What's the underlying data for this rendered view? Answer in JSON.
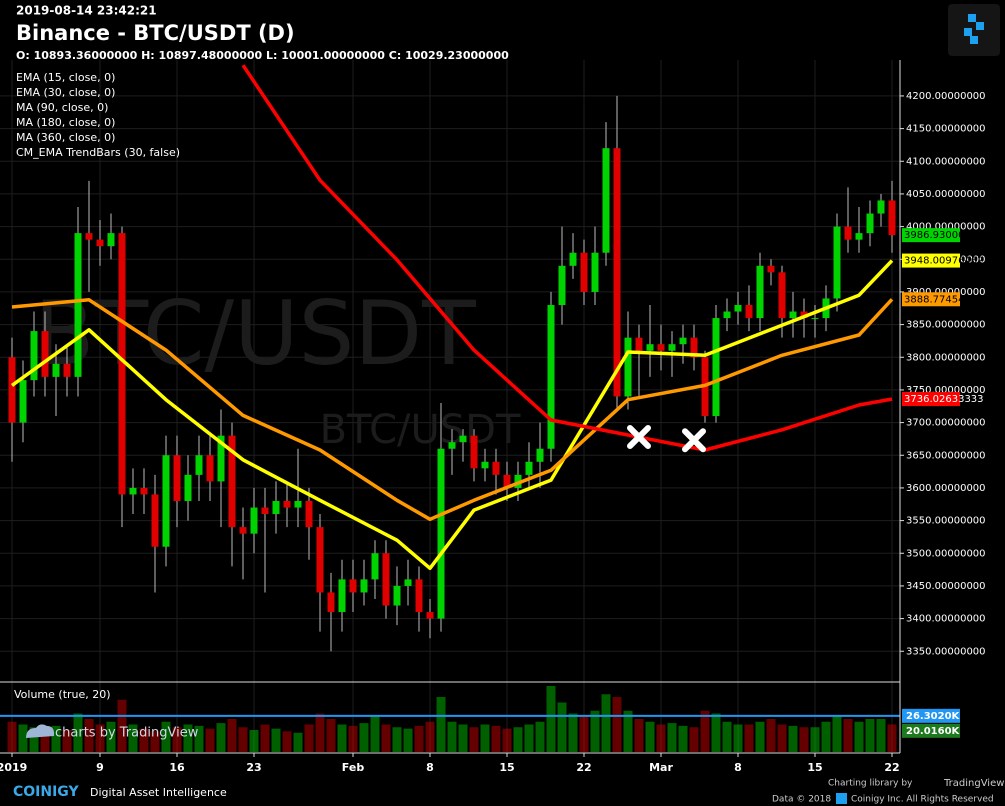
{
  "chart_data": {
    "type": "candlestick",
    "timestamp": "2019-08-14 23:42:21",
    "title": "Binance - BTC/USDT (D)",
    "ohlc_text": "O: 10893.36000000 H: 10897.48000000 L: 10001.00000000 C: 10029.23000000",
    "other_indicators": [
      "MA (180, close, 0)",
      "MA (360, close, 0)",
      "CM_EMA TrendBars (30, false)"
    ],
    "watermark": "BTC/USDT",
    "candles": {
      "x": [
        "2019-01-01",
        "2019-01-02",
        "2019-01-03",
        "2019-01-04",
        "2019-01-05",
        "2019-01-06",
        "2019-01-07",
        "2019-01-08",
        "2019-01-09",
        "2019-01-10",
        "2019-01-11",
        "2019-01-12",
        "2019-01-13",
        "2019-01-14",
        "2019-01-15",
        "2019-01-16",
        "2019-01-17",
        "2019-01-18",
        "2019-01-19",
        "2019-01-20",
        "2019-01-21",
        "2019-01-22",
        "2019-01-23",
        "2019-01-24",
        "2019-01-25",
        "2019-01-26",
        "2019-01-27",
        "2019-01-28",
        "2019-01-29",
        "2019-01-30",
        "2019-01-31",
        "2019-02-01",
        "2019-02-02",
        "2019-02-03",
        "2019-02-04",
        "2019-02-05",
        "2019-02-06",
        "2019-02-07",
        "2019-02-08",
        "2019-02-09",
        "2019-02-10",
        "2019-02-11",
        "2019-02-12",
        "2019-02-13",
        "2019-02-14",
        "2019-02-15",
        "2019-02-16",
        "2019-02-17",
        "2019-02-18",
        "2019-02-19",
        "2019-02-20",
        "2019-02-21",
        "2019-02-22",
        "2019-02-23",
        "2019-02-24",
        "2019-02-25",
        "2019-02-26",
        "2019-02-27",
        "2019-02-28",
        "2019-03-01",
        "2019-03-02",
        "2019-03-03",
        "2019-03-04",
        "2019-03-05",
        "2019-03-06",
        "2019-03-07",
        "2019-03-08",
        "2019-03-09",
        "2019-03-10",
        "2019-03-11",
        "2019-03-12",
        "2019-03-13",
        "2019-03-14",
        "2019-03-15",
        "2019-03-16",
        "2019-03-17",
        "2019-03-18",
        "2019-03-19",
        "2019-03-20",
        "2019-03-21",
        "2019-03-22"
      ],
      "open": [
        3800,
        3700,
        3765,
        3840,
        3770,
        3790,
        3770,
        3990,
        3980,
        3970,
        3990,
        3590,
        3600,
        3590,
        3510,
        3650,
        3580,
        3620,
        3650,
        3610,
        3680,
        3540,
        3530,
        3570,
        3560,
        3580,
        3570,
        3580,
        3540,
        3440,
        3410,
        3460,
        3440,
        3460,
        3500,
        3420,
        3450,
        3460,
        3410,
        3400,
        3660,
        3670,
        3680,
        3630,
        3640,
        3620,
        3600,
        3620,
        3640,
        3660,
        3880,
        3940,
        3960,
        3900,
        3960,
        4120,
        3740,
        3830,
        3810,
        3820,
        3810,
        3820,
        3830,
        3800,
        3710,
        3860,
        3870,
        3880,
        3860,
        3940,
        3930,
        3860,
        3870,
        3860,
        3860,
        3890,
        4000,
        3980,
        3990,
        4020,
        4040
      ],
      "high": [
        3830,
        3795,
        3870,
        3870,
        3820,
        3820,
        4030,
        4070,
        4010,
        4020,
        4000,
        3630,
        3630,
        3620,
        3680,
        3680,
        3650,
        3680,
        3680,
        3720,
        3700,
        3570,
        3600,
        3600,
        3610,
        3610,
        3660,
        3600,
        3560,
        3470,
        3490,
        3490,
        3490,
        3520,
        3520,
        3480,
        3490,
        3480,
        3430,
        3730,
        3690,
        3690,
        3690,
        3660,
        3660,
        3640,
        3640,
        3670,
        3700,
        3900,
        4000,
        3990,
        3980,
        4000,
        4160,
        4200,
        3870,
        3850,
        3880,
        3850,
        3840,
        3850,
        3850,
        3810,
        3880,
        3890,
        3900,
        3910,
        3960,
        3950,
        3940,
        3900,
        3890,
        3880,
        3910,
        4020,
        4060,
        4030,
        4040,
        4050,
        4070
      ],
      "low": [
        3640,
        3670,
        3740,
        3740,
        3710,
        3740,
        3740,
        3900,
        3940,
        3950,
        3540,
        3560,
        3560,
        3440,
        3480,
        3540,
        3550,
        3580,
        3580,
        3540,
        3480,
        3460,
        3500,
        3440,
        3530,
        3540,
        3540,
        3490,
        3380,
        3350,
        3380,
        3410,
        3420,
        3430,
        3400,
        3390,
        3420,
        3380,
        3370,
        3380,
        3620,
        3640,
        3610,
        3610,
        3590,
        3580,
        3580,
        3600,
        3600,
        3640,
        3850,
        3920,
        3880,
        3880,
        3940,
        3720,
        3720,
        3740,
        3770,
        3780,
        3770,
        3790,
        3780,
        3700,
        3700,
        3840,
        3850,
        3840,
        3840,
        3910,
        3830,
        3830,
        3830,
        3830,
        3840,
        3870,
        3960,
        3960,
        3970,
        4000,
        3960
      ],
      "close": [
        3700,
        3765,
        3840,
        3770,
        3790,
        3770,
        3990,
        3980,
        3970,
        3990,
        3590,
        3600,
        3590,
        3510,
        3650,
        3580,
        3620,
        3650,
        3610,
        3680,
        3540,
        3530,
        3570,
        3560,
        3580,
        3570,
        3580,
        3540,
        3440,
        3410,
        3460,
        3440,
        3460,
        3500,
        3420,
        3450,
        3460,
        3410,
        3400,
        3660,
        3670,
        3680,
        3630,
        3640,
        3620,
        3600,
        3620,
        3640,
        3660,
        3880,
        3940,
        3960,
        3900,
        3960,
        4120,
        3740,
        3830,
        3810,
        3820,
        3810,
        3820,
        3830,
        3800,
        3710,
        3860,
        3870,
        3880,
        3860,
        3940,
        3930,
        3860,
        3870,
        3860,
        3860,
        3890,
        4000,
        3980,
        3990,
        4020,
        4040,
        3986.93
      ],
      "close_label": "3986.93000000",
      "up_color": "#00d400",
      "down_color": "#e00000"
    },
    "ylim": [
      3306,
      4255
    ],
    "yticks": [
      {
        "value": 3350,
        "label": "3350.00000000"
      },
      {
        "value": 3400,
        "label": "3400.00000000"
      },
      {
        "value": 3450,
        "label": "3450.00000000"
      },
      {
        "value": 3500,
        "label": "3500.00000000"
      },
      {
        "value": 3550,
        "label": "3550.00000000"
      },
      {
        "value": 3600,
        "label": "3600.00000000"
      },
      {
        "value": 3650,
        "label": "3650.00000000"
      },
      {
        "value": 3700,
        "label": "3700.00000000"
      },
      {
        "value": 3750,
        "label": "3750.00000000"
      },
      {
        "value": 3800,
        "label": "3800.00000000"
      },
      {
        "value": 3850,
        "label": "3850.00000000"
      },
      {
        "value": 3900,
        "label": "3900.00000000"
      },
      {
        "value": 3950,
        "label": "3950.00000000"
      },
      {
        "value": 4000,
        "label": "4000.00000000"
      },
      {
        "value": 4050,
        "label": "4050.00000000"
      },
      {
        "value": 4100,
        "label": "4100.00000000"
      },
      {
        "value": 4150,
        "label": "4150.00000000"
      },
      {
        "value": 4200,
        "label": "4200.00000000"
      }
    ],
    "xticks": [
      {
        "value": "2019-01-01",
        "label": "2019"
      },
      {
        "value": "2019-01-09",
        "label": "9"
      },
      {
        "value": "2019-01-16",
        "label": "16"
      },
      {
        "value": "2019-01-23",
        "label": "23"
      },
      {
        "value": "2019-02-01",
        "label": "Feb"
      },
      {
        "value": "2019-02-08",
        "label": "8"
      },
      {
        "value": "2019-02-15",
        "label": "15"
      },
      {
        "value": "2019-02-22",
        "label": "22"
      },
      {
        "value": "2019-03-01",
        "label": "Mar"
      },
      {
        "value": "2019-03-08",
        "label": "8"
      },
      {
        "value": "2019-03-15",
        "label": "15"
      },
      {
        "value": "2019-03-22",
        "label": "22"
      }
    ],
    "series": [
      {
        "name": "EMA (15, close, 0)",
        "color": "#ffff00",
        "tag_text": "#000000",
        "x": [
          "2019-01-01",
          "2019-01-08",
          "2019-01-15",
          "2019-01-22",
          "2019-01-29",
          "2019-02-05",
          "2019-02-08",
          "2019-02-12",
          "2019-02-19",
          "2019-02-26",
          "2019-03-05",
          "2019-03-12",
          "2019-03-19",
          "2019-03-22"
        ],
        "values": [
          3757,
          3842,
          3735,
          3643,
          3581,
          3520,
          3477,
          3566,
          3612,
          3808,
          3803,
          3849,
          3895,
          3948.00976462
        ]
      },
      {
        "name": "EMA (30, close, 0)",
        "color": "#ff9900",
        "tag_text": "#000000",
        "x": [
          "2019-01-01",
          "2019-01-08",
          "2019-01-15",
          "2019-01-22",
          "2019-01-29",
          "2019-02-05",
          "2019-02-08",
          "2019-02-12",
          "2019-02-19",
          "2019-02-26",
          "2019-03-05",
          "2019-03-12",
          "2019-03-19",
          "2019-03-22"
        ],
        "values": [
          3877,
          3888,
          3811,
          3711,
          3658,
          3581,
          3552,
          3581,
          3627,
          3735,
          3757,
          3803,
          3834,
          3888.77454916
        ]
      },
      {
        "name": "MA (90, close, 0)",
        "color": "#ff0000",
        "tag_text": "#ffffff",
        "x": [
          "2019-01-22",
          "2019-01-29",
          "2019-02-05",
          "2019-02-12",
          "2019-02-19",
          "2019-02-26",
          "2019-03-05",
          "2019-03-12",
          "2019-03-19",
          "2019-03-22"
        ],
        "values": [
          4247,
          4071,
          3949,
          3811,
          3704,
          3681,
          3658,
          3689,
          3727,
          3736.02633333
        ]
      }
    ],
    "markers": {
      "x": [
        "2019-02-27",
        "2019-03-04"
      ],
      "values": [
        3678,
        3673
      ],
      "color": "#ffffff"
    },
    "volume": {
      "title": "Volume (true, 20)",
      "values": [
        22,
        20,
        18,
        17,
        19,
        16,
        28,
        24,
        20,
        22,
        38,
        20,
        17,
        15,
        22,
        18,
        20,
        19,
        17,
        21,
        24,
        18,
        16,
        20,
        17,
        15,
        14,
        20,
        28,
        24,
        20,
        19,
        21,
        26,
        20,
        18,
        17,
        19,
        22,
        40,
        22,
        20,
        18,
        20,
        19,
        17,
        18,
        20,
        22,
        48,
        36,
        28,
        26,
        30,
        42,
        40,
        30,
        24,
        22,
        20,
        21,
        19,
        18,
        30,
        28,
        22,
        20,
        20,
        22,
        24,
        20,
        19,
        18,
        18,
        22,
        26,
        24,
        22,
        24,
        24,
        20.016
      ],
      "last_label": "20.0160K",
      "ma": {
        "value": 26.302,
        "label": "26.3020K",
        "color": "#2196f3"
      },
      "ylim": [
        0,
        48
      ]
    },
    "footer": {
      "brand": "COINIGY",
      "tagline": "Digital Asset Intelligence",
      "charting": "Charting library by",
      "tv": "TradingView",
      "charts_by": "charts by TradingView",
      "copyright": "Data © 2018",
      "rights": "Coinigy Inc. All Rights Reserved"
    }
  }
}
